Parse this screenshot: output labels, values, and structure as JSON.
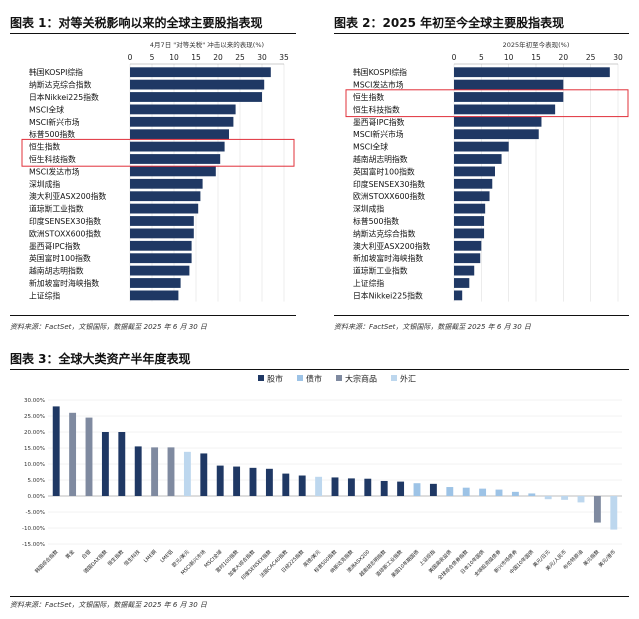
{
  "colors": {
    "navy": "#1f3864",
    "bond": "#9dc3e6",
    "commodity": "#7f8aa0",
    "fx": "#bdd7ee",
    "highlight": "#e0303a",
    "grid": "#d9d9d9"
  },
  "panel1": {
    "title": "图表 1：对等关税影响以来的全球主要股指表现",
    "source": "资料来源：FactSet，文银国际，数据截至 2025 年 6 月 30 日"
  },
  "panel2": {
    "title": "图表 2：2025 年初至今全球主要股指表现",
    "source": "资料来源：FactSet，文银国际，数据截至 2025 年 6 月 30 日"
  },
  "panel3": {
    "title": "图表 3：全球大类资产半年度表现",
    "source": "资料来源：FactSet，文银国际，数据截至 2025 年 6 月 30 日"
  },
  "chart_data": [
    {
      "type": "bar",
      "orientation": "horizontal",
      "title": "4月7日 \"对等关税\" 冲击以来的表现(%)",
      "xlim": [
        0,
        35
      ],
      "ticks": [
        0,
        5,
        10,
        15,
        20,
        25,
        30,
        35
      ],
      "highlighted": [
        "恒生指数",
        "恒生科技指数"
      ],
      "categories": [
        "韩国KOSPI综指",
        "纳斯达克综合指数",
        "日本Nikkei225指数",
        "MSCI全球",
        "MSCI新兴市场",
        "标普500指数",
        "恒生指数",
        "恒生科技指数",
        "MSCI发达市场",
        "深圳成指",
        "澳大利亚ASX200指数",
        "道琼斯工业指数",
        "印度SENSEX30指数",
        "欧洲STOXX600指数",
        "墨西哥IPC指数",
        "英国富时100指数",
        "越南胡志明指数",
        "新加坡富时海峡指数",
        "上证综指"
      ],
      "values": [
        32,
        30.5,
        30,
        24,
        23.5,
        22.5,
        21.5,
        20.5,
        19.5,
        16.5,
        16,
        15.5,
        14.5,
        14.5,
        14,
        14,
        13.5,
        11.5,
        11
      ]
    },
    {
      "type": "bar",
      "orientation": "horizontal",
      "title": "2025年初至今表现(%)",
      "xlim": [
        0,
        30
      ],
      "ticks": [
        0,
        5,
        10,
        15,
        20,
        25,
        30
      ],
      "highlighted": [
        "恒生指数",
        "恒生科技指数"
      ],
      "categories": [
        "韩国KOSPI综指",
        "MSCI发达市场",
        "恒生指数",
        "恒生科技指数",
        "墨西哥IPC指数",
        "MSCI新兴市场",
        "MSCI全球",
        "越南胡志明指数",
        "英国富时100指数",
        "印度SENSEX30指数",
        "欧洲STOXX600指数",
        "深圳成指",
        "标普500指数",
        "纳斯达克综合指数",
        "澳大利亚ASX200指数",
        "新加坡富时海峡指数",
        "道琼斯工业指数",
        "上证综指",
        "日本Nikkei225指数"
      ],
      "values": [
        28.5,
        20,
        20,
        18.5,
        16,
        15.5,
        10,
        8.7,
        7.5,
        7,
        6.5,
        5.7,
        5.5,
        5.5,
        5,
        4.8,
        3.7,
        2.8,
        1.5
      ]
    },
    {
      "type": "bar",
      "title": "",
      "ylim": [
        -0.15,
        0.3
      ],
      "ticks": [
        "-15.00%",
        "-10.00%",
        "-5.00%",
        "0.00%",
        "5.00%",
        "10.00%",
        "15.00%",
        "20.00%",
        "25.00%",
        "30.00%"
      ],
      "tick_values": [
        -0.15,
        -0.1,
        -0.05,
        0,
        0.05,
        0.1,
        0.15,
        0.2,
        0.25,
        0.3
      ],
      "legend": [
        {
          "name": "股市",
          "key": "equity"
        },
        {
          "name": "债市",
          "key": "bond"
        },
        {
          "name": "大宗商品",
          "key": "commodity"
        },
        {
          "name": "外汇",
          "key": "fx"
        }
      ],
      "legend_position": "top",
      "categories": [
        "韩国综合指数",
        "黄金",
        "白银",
        "德国DAX指数",
        "恒生指数",
        "恒生科技",
        "LME铜",
        "LME铝",
        "欧元/美元",
        "MSCI新兴市场",
        "MSCI全球",
        "富时100指数",
        "加拿大综合指数",
        "印度SENSEX指数",
        "法国CAC40指数",
        "日经225指数",
        "英镑/美元",
        "标普500指数",
        "纳斯达克指数",
        "澳洲ASX200",
        "越南胡志明指数",
        "道琼斯工业指数",
        "美国10年期国债",
        "上证综指",
        "美国高收益债",
        "全球综合债券指数",
        "日本10年国债",
        "全球投资级债券",
        "新兴市场债券",
        "中国10年国债",
        "美元/日元",
        "美元/人民币",
        "布伦特原油",
        "美元指数",
        "美元/港币"
      ],
      "types": [
        "equity",
        "commodity",
        "commodity",
        "equity",
        "equity",
        "equity",
        "commodity",
        "commodity",
        "fx",
        "equity",
        "equity",
        "equity",
        "equity",
        "equity",
        "equity",
        "equity",
        "fx",
        "equity",
        "equity",
        "equity",
        "equity",
        "equity",
        "bond",
        "equity",
        "bond",
        "bond",
        "bond",
        "bond",
        "bond",
        "bond",
        "fx",
        "fx",
        "fx",
        "commodity",
        "fx"
      ],
      "values": [
        0.28,
        0.26,
        0.245,
        0.2,
        0.2,
        0.155,
        0.152,
        0.152,
        0.138,
        0.133,
        0.095,
        0.092,
        0.088,
        0.085,
        0.07,
        0.064,
        0.06,
        0.058,
        0.055,
        0.054,
        0.047,
        0.045,
        0.04,
        0.038,
        0.028,
        0.026,
        0.023,
        0.02,
        0.013,
        0.008,
        -0.01,
        -0.012,
        -0.02,
        -0.083,
        -0.105
      ]
    }
  ]
}
